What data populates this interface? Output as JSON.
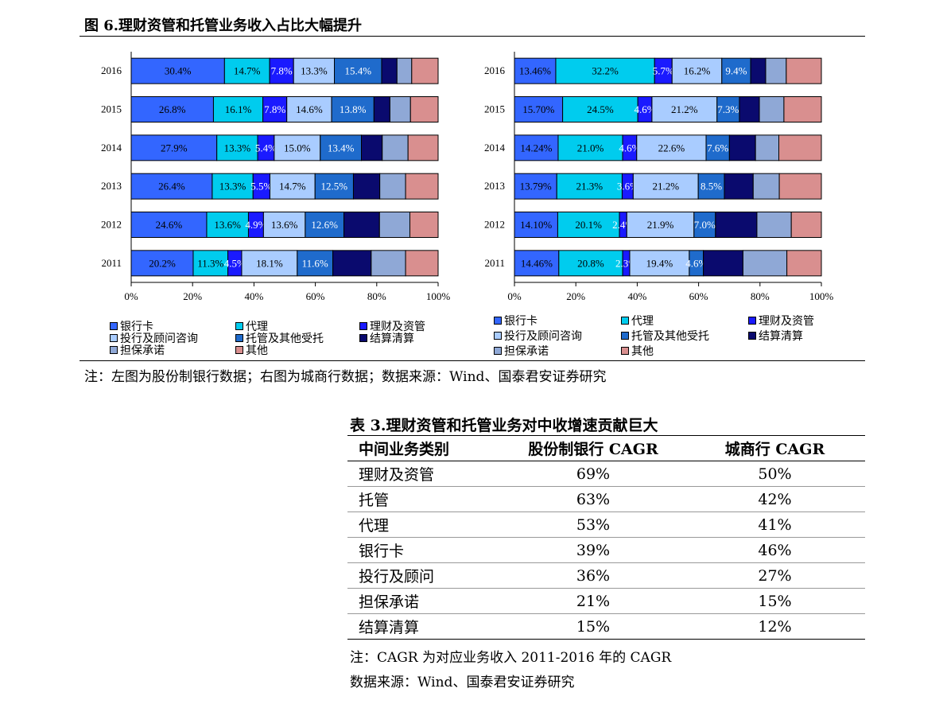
{
  "figure": {
    "title": "图 6.理财资管和托管业务收入占比大幅提升",
    "note": "注：左图为股份制银行数据；右图为城商行数据；数据来源：Wind、国泰君安证券研究"
  },
  "legend": [
    {
      "label": "银行卡",
      "color": "#3366ff"
    },
    {
      "label": "代理",
      "color": "#00ccee"
    },
    {
      "label": "理财及资管",
      "color": "#1a1aff"
    },
    {
      "label": "投行及顾问咨询",
      "color": "#a9ccff"
    },
    {
      "label": "托管及其他受托",
      "color": "#1f6bcc"
    },
    {
      "label": "结算清算",
      "color": "#0a0a6e"
    },
    {
      "label": "担保承诺",
      "color": "#8fa8d6"
    },
    {
      "label": "其他",
      "color": "#d98f8f"
    }
  ],
  "chart_data": [
    {
      "type": "bar",
      "orientation": "horizontal",
      "stacked": "percent",
      "categories": [
        "2016",
        "2015",
        "2014",
        "2013",
        "2012",
        "2011"
      ],
      "xlim": [
        0,
        100
      ],
      "xticks": [
        "0%",
        "20%",
        "40%",
        "60%",
        "80%",
        "100%"
      ],
      "series": [
        {
          "name": "银行卡",
          "values": [
            30.4,
            26.8,
            27.9,
            26.4,
            24.6,
            20.2
          ],
          "labels": [
            "30.4%",
            "26.8%",
            "27.9%",
            "26.4%",
            "24.6%",
            "20.2%"
          ]
        },
        {
          "name": "代理",
          "values": [
            14.7,
            16.1,
            13.3,
            13.3,
            13.6,
            11.3
          ],
          "labels": [
            "14.7%",
            "16.1%",
            "13.3%",
            "13.3%",
            "13.6%",
            "11.3%"
          ]
        },
        {
          "name": "理财及资管",
          "values": [
            7.8,
            7.8,
            5.4,
            5.5,
            4.9,
            4.5
          ],
          "labels": [
            "7.8%",
            "7.8%",
            "5.4%",
            "5.5%",
            "4.9%",
            "4.5%"
          ]
        },
        {
          "name": "投行及顾问咨询",
          "values": [
            13.3,
            14.6,
            15.0,
            14.7,
            13.6,
            18.1
          ],
          "labels": [
            "13.3%",
            "14.6%",
            "15.0%",
            "14.7%",
            "13.6%",
            "18.1%"
          ]
        },
        {
          "name": "托管及其他受托",
          "values": [
            15.4,
            13.8,
            13.4,
            12.5,
            12.6,
            11.6
          ],
          "labels": [
            "15.4%",
            "13.8%",
            "13.4%",
            "12.5%",
            "12.6%",
            "11.6%"
          ]
        },
        {
          "name": "结算清算",
          "values": [
            5.0,
            5.2,
            6.8,
            8.6,
            11.6,
            12.5
          ]
        },
        {
          "name": "担保承诺",
          "values": [
            4.8,
            6.7,
            8.4,
            8.4,
            9.9,
            11.2
          ]
        },
        {
          "name": "其他",
          "values": [
            8.6,
            9.0,
            9.8,
            10.6,
            9.2,
            10.6
          ]
        }
      ]
    },
    {
      "type": "bar",
      "orientation": "horizontal",
      "stacked": "percent",
      "categories": [
        "2016",
        "2015",
        "2014",
        "2013",
        "2012",
        "2011"
      ],
      "xlim": [
        0,
        100
      ],
      "xticks": [
        "0%",
        "20%",
        "40%",
        "60%",
        "80%",
        "100%"
      ],
      "series": [
        {
          "name": "银行卡",
          "values": [
            13.46,
            15.7,
            14.24,
            13.79,
            14.1,
            14.46
          ],
          "labels": [
            "13.46%",
            "15.70%",
            "14.24%",
            "13.79%",
            "14.10%",
            "14.46%"
          ]
        },
        {
          "name": "代理",
          "values": [
            32.2,
            24.5,
            21.0,
            21.3,
            20.1,
            20.8
          ],
          "labels": [
            "32.2%",
            "24.5%",
            "21.0%",
            "21.3%",
            "20.1%",
            "20.8%"
          ]
        },
        {
          "name": "理财及资管",
          "values": [
            5.7,
            4.6,
            4.6,
            3.6,
            2.4,
            2.3
          ],
          "labels": [
            "5.7%",
            "4.6%",
            "4.6%",
            "3.6%",
            "2.4%",
            "2.3%"
          ]
        },
        {
          "name": "投行及顾问咨询",
          "values": [
            16.2,
            21.2,
            22.6,
            21.2,
            21.9,
            19.4
          ],
          "labels": [
            "16.2%",
            "21.2%",
            "22.6%",
            "21.2%",
            "21.9%",
            "19.4%"
          ]
        },
        {
          "name": "托管及其他受托",
          "values": [
            9.4,
            7.3,
            7.6,
            8.5,
            7.0,
            4.6
          ],
          "labels": [
            "9.4%",
            "7.3%",
            "7.6%",
            "8.5%",
            "7.0%",
            "4.6%"
          ]
        },
        {
          "name": "结算清算",
          "values": [
            4.9,
            6.5,
            8.5,
            9.4,
            13.5,
            12.9
          ]
        },
        {
          "name": "担保承诺",
          "values": [
            6.7,
            8.0,
            7.6,
            8.5,
            11.2,
            14.3
          ]
        },
        {
          "name": "其他",
          "values": [
            11.44,
            12.2,
            13.86,
            13.71,
            9.8,
            11.24
          ]
        }
      ]
    }
  ],
  "table": {
    "title": "表 3.理财资管和托管业务对中收增速贡献巨大",
    "headers": [
      "中间业务类别",
      "股份制银行 CAGR",
      "城商行 CAGR"
    ],
    "rows": [
      [
        "理财及资管",
        "69%",
        "50%"
      ],
      [
        "托管",
        "63%",
        "42%"
      ],
      [
        "代理",
        "53%",
        "41%"
      ],
      [
        "银行卡",
        "39%",
        "46%"
      ],
      [
        "投行及顾问",
        "36%",
        "27%"
      ],
      [
        "担保承诺",
        "21%",
        "15%"
      ],
      [
        "结算清算",
        "15%",
        "12%"
      ]
    ],
    "note": "注：CAGR 为对应业务收入 2011-2016 年的 CAGR",
    "source": "数据来源：Wind、国泰君安证券研究"
  }
}
